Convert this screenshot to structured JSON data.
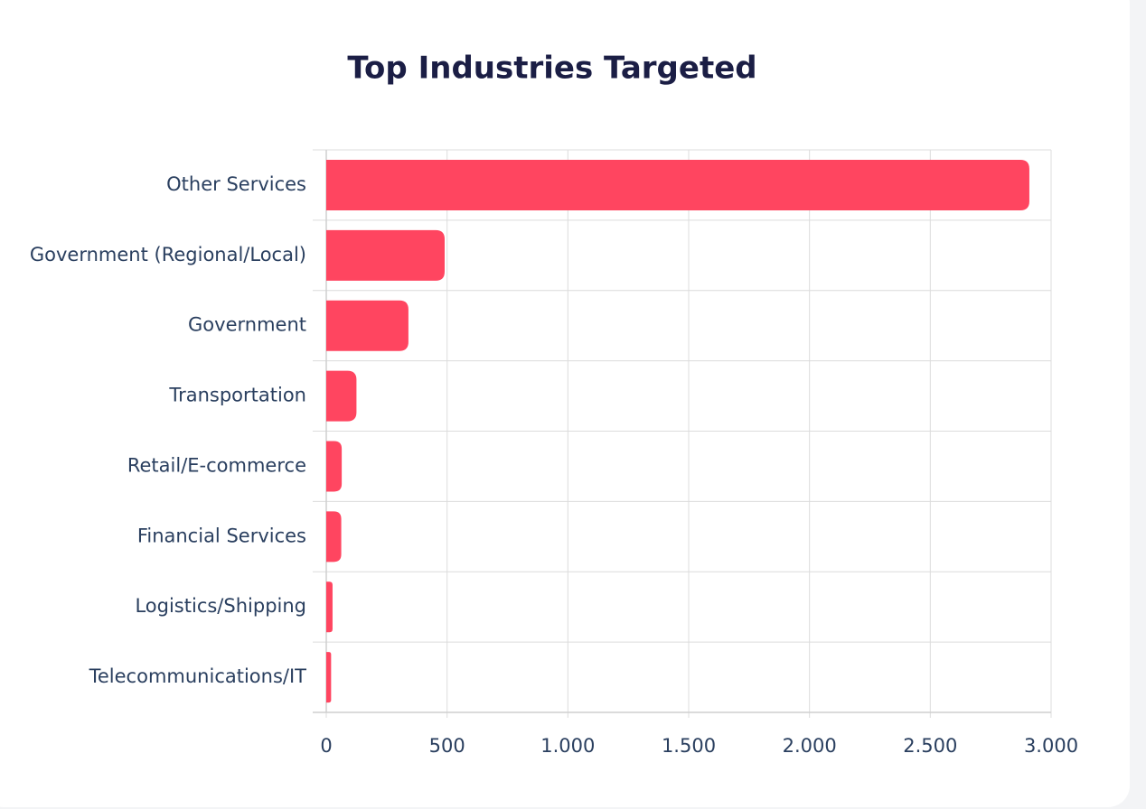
{
  "chart_data": {
    "type": "bar",
    "orientation": "horizontal",
    "title": "Top Industries Targeted",
    "categories": [
      "Other Services",
      "Government (Regional/Local)",
      "Government",
      "Transportation",
      "Retail/E-commerce",
      "Financial Services",
      "Logistics/Shipping",
      "Telecommunications/IT"
    ],
    "values": [
      2910,
      490,
      340,
      125,
      64,
      62,
      26,
      20
    ],
    "color": "#ff4560",
    "xlim": [
      0,
      3000
    ],
    "xticks": [
      0,
      500,
      {
        "value": 1000,
        "label": "1.000"
      },
      {
        "value": 1500,
        "label": "1.500"
      },
      {
        "value": 2000,
        "label": "2.000"
      },
      {
        "value": 2500,
        "label": "2.500"
      },
      {
        "value": 3000,
        "label": "3.000"
      }
    ],
    "grid": true
  }
}
